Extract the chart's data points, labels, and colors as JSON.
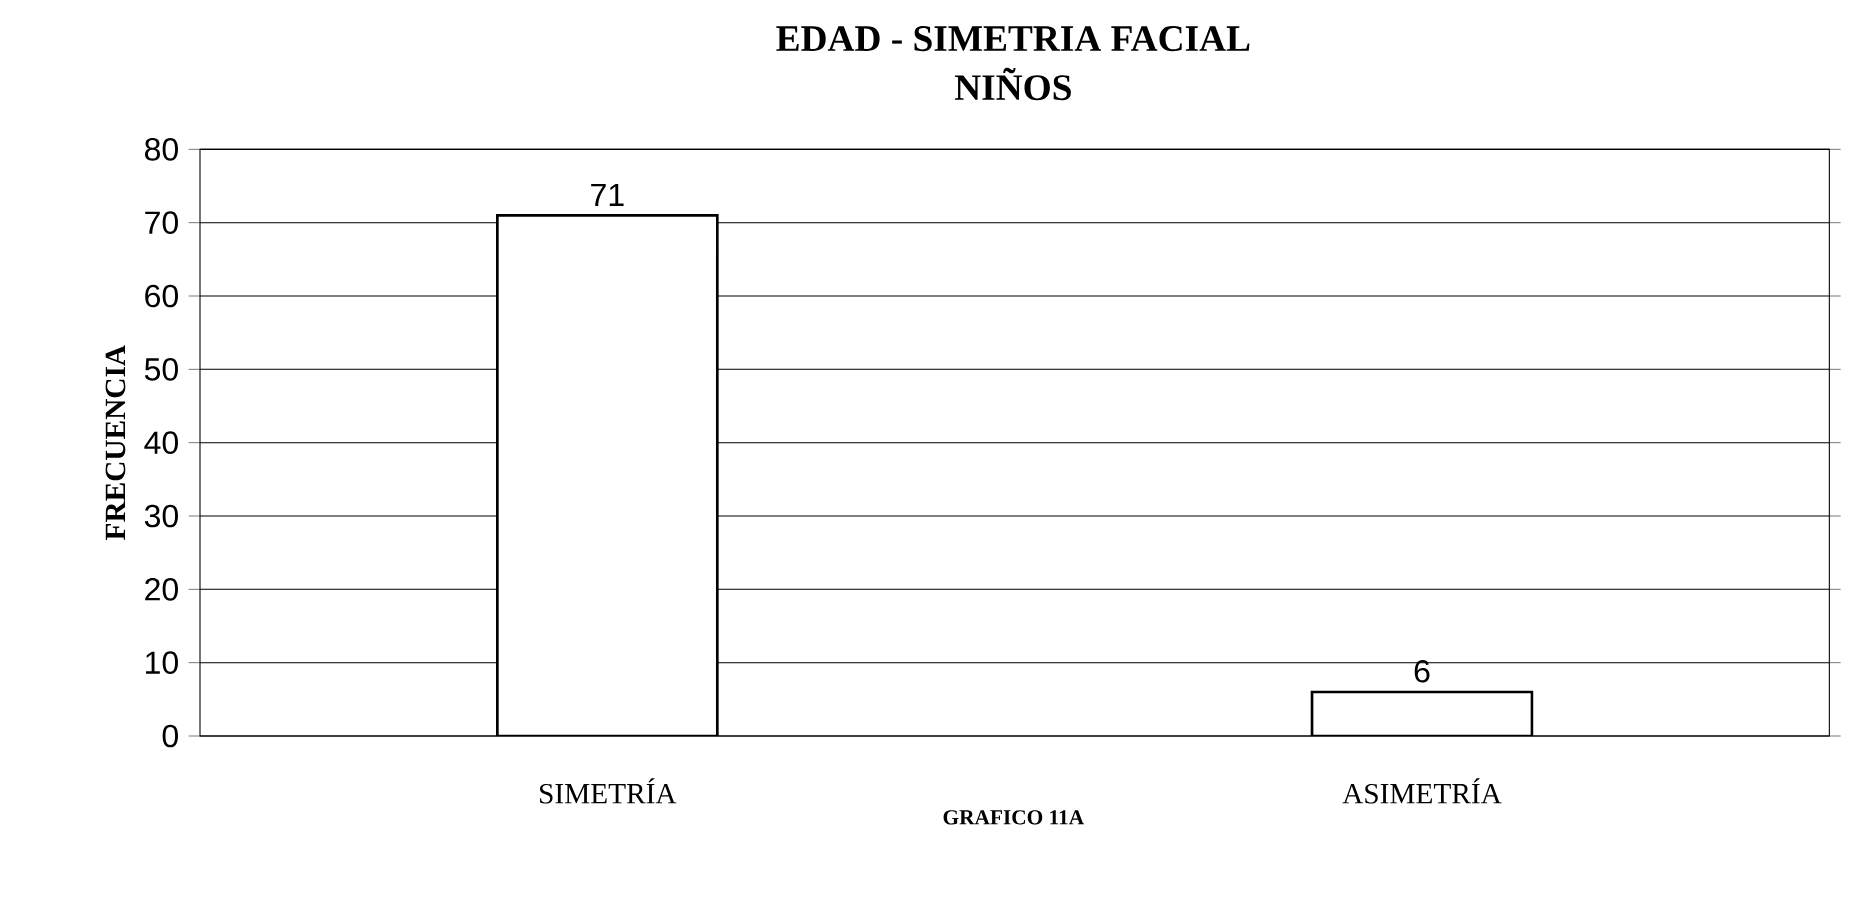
{
  "chart_data": {
    "type": "bar",
    "title": "EDAD - SIMETRIA FACIAL",
    "subtitle": "NIÑOS",
    "ylabel": "FRECUENCIA",
    "categories": [
      "SIMETRÍA",
      "ASIMETRÍA"
    ],
    "values": [
      71,
      6
    ],
    "color": "#ffffff",
    "ylim": [
      0,
      80
    ],
    "yticks": [
      0,
      10,
      20,
      30,
      40,
      50,
      60,
      70,
      80
    ],
    "grid": "y",
    "data_labels": true,
    "annotations": [
      "GRAFICO 11A"
    ]
  }
}
